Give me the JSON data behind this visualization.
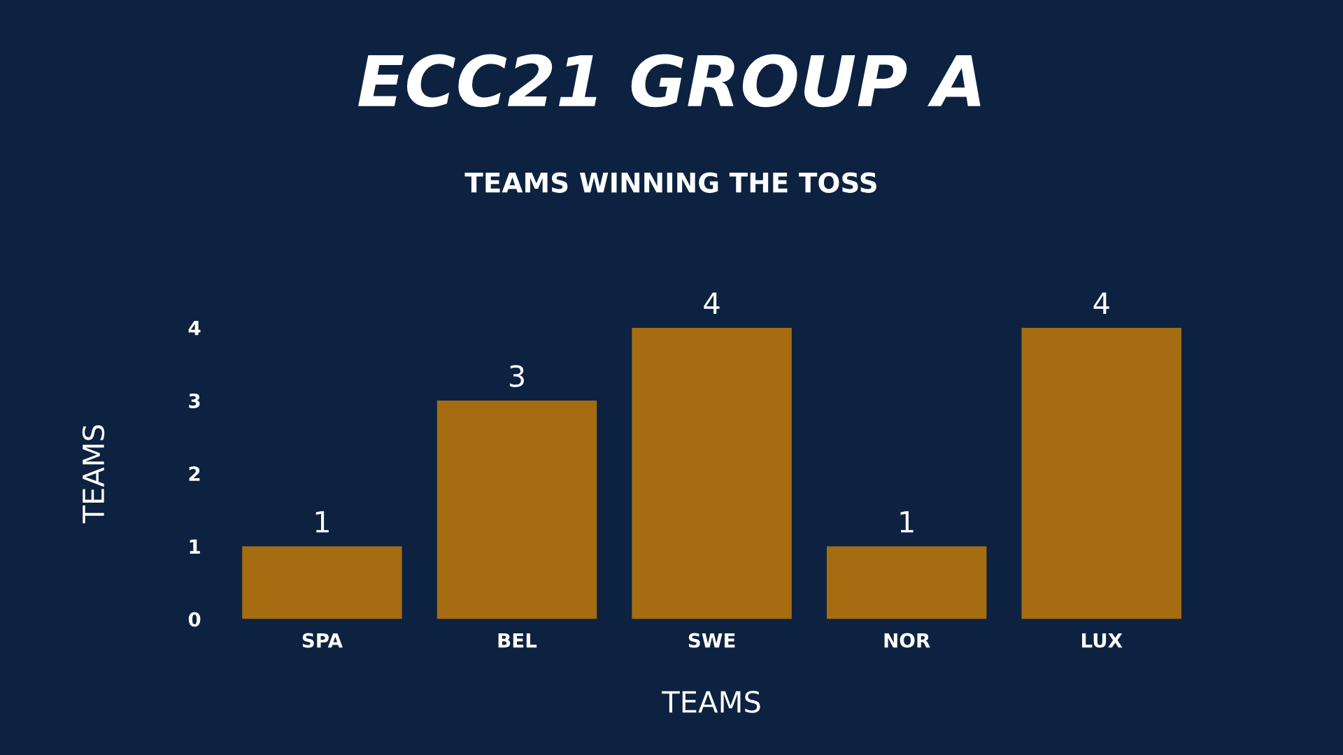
{
  "chart_data": {
    "type": "bar",
    "title": "ECC21 GROUP A",
    "subtitle": "TEAMS WINNING THE TOSS",
    "xlabel": "TEAMS",
    "ylabel": "TEAMS",
    "categories": [
      "SPA",
      "BEL",
      "SWE",
      "NOR",
      "LUX"
    ],
    "values": [
      1,
      3,
      4,
      1,
      4
    ],
    "color": "#a56c12",
    "ylim": [
      0,
      4
    ],
    "yticks": [
      0,
      1,
      2,
      3,
      4
    ],
    "grid": false,
    "data_labels": true
  }
}
